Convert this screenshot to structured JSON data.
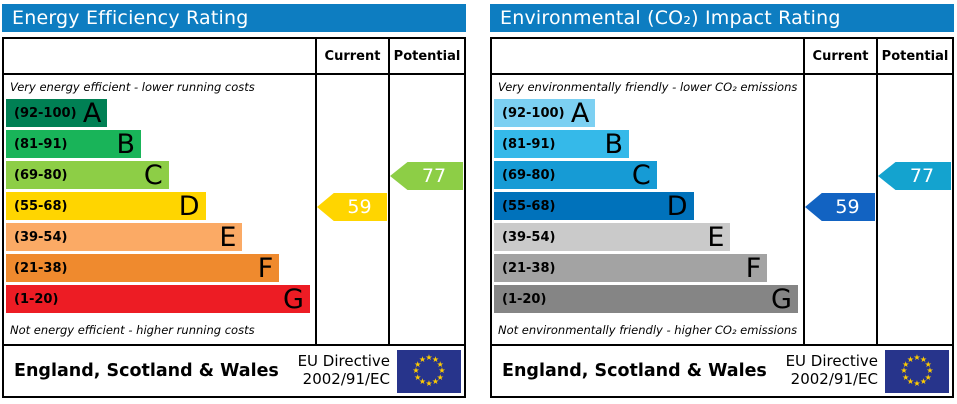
{
  "header_color": "#0d7dc1",
  "panels": [
    {
      "title": "Energy Efficiency Rating",
      "columns": {
        "current": "Current",
        "potential": "Potential"
      },
      "top_note": "Very energy efficient - lower running costs",
      "bottom_note": "Not energy efficient - higher running costs",
      "bands": [
        {
          "range": "(92-100)",
          "letter": "A",
          "color": "#008054",
          "width_pct": 33
        },
        {
          "range": "(81-91)",
          "letter": "B",
          "color": "#19b459",
          "width_pct": 44
        },
        {
          "range": "(69-80)",
          "letter": "C",
          "color": "#8dce46",
          "width_pct": 53
        },
        {
          "range": "(55-68)",
          "letter": "D",
          "color": "#ffd500",
          "width_pct": 65
        },
        {
          "range": "(39-54)",
          "letter": "E",
          "color": "#fbaa65",
          "width_pct": 77
        },
        {
          "range": "(21-38)",
          "letter": "F",
          "color": "#ef8a2e",
          "width_pct": 89
        },
        {
          "range": "(1-20)",
          "letter": "G",
          "color": "#ed1c24",
          "width_pct": 99
        }
      ],
      "current": {
        "value": "59",
        "band": "D",
        "row": 3,
        "color": "#ffd500"
      },
      "potential": {
        "value": "77",
        "band": "C",
        "row": 2,
        "color": "#8dce46"
      },
      "footer": {
        "region": "England, Scotland & Wales",
        "directive_line1": "EU Directive",
        "directive_line2": "2002/91/EC",
        "flag": "EU flag"
      }
    },
    {
      "title": "Environmental (CO₂) Impact Rating",
      "columns": {
        "current": "Current",
        "potential": "Potential"
      },
      "top_note": "Very environmentally friendly - lower CO₂ emissions",
      "bottom_note": "Not environmentally friendly - higher CO₂ emissions",
      "bands": [
        {
          "range": "(92-100)",
          "letter": "A",
          "color": "#7cd0f2",
          "width_pct": 33
        },
        {
          "range": "(81-91)",
          "letter": "B",
          "color": "#35b9e9",
          "width_pct": 44
        },
        {
          "range": "(69-80)",
          "letter": "C",
          "color": "#169bd5",
          "width_pct": 53
        },
        {
          "range": "(55-68)",
          "letter": "D",
          "color": "#0072bb",
          "width_pct": 65
        },
        {
          "range": "(39-54)",
          "letter": "E",
          "color": "#cacaca",
          "width_pct": 77
        },
        {
          "range": "(21-38)",
          "letter": "F",
          "color": "#a3a3a3",
          "width_pct": 89
        },
        {
          "range": "(1-20)",
          "letter": "G",
          "color": "#858585",
          "width_pct": 99
        }
      ],
      "current": {
        "value": "59",
        "band": "D",
        "row": 3,
        "color": "#1263c2"
      },
      "potential": {
        "value": "77",
        "band": "C",
        "row": 2,
        "color": "#14a3cf"
      },
      "footer": {
        "region": "England, Scotland & Wales",
        "directive_line1": "EU Directive",
        "directive_line2": "2002/91/EC",
        "flag": "EU flag"
      }
    }
  ],
  "chart_data": [
    {
      "type": "bar",
      "title": "Energy Efficiency Rating",
      "categories": [
        "A (92-100)",
        "B (81-91)",
        "C (69-80)",
        "D (55-68)",
        "E (39-54)",
        "F (21-38)",
        "G (1-20)"
      ],
      "values": [
        33,
        44,
        53,
        65,
        77,
        89,
        99
      ],
      "values_note": "bar lengths as percent of band column width; bands are rating ranges",
      "annotations": [
        {
          "label": "Current",
          "value": 59,
          "band": "D"
        },
        {
          "label": "Potential",
          "value": 77,
          "band": "C"
        }
      ],
      "legend": [
        "Current",
        "Potential"
      ],
      "footer": "England, Scotland & Wales — EU Directive 2002/91/EC"
    },
    {
      "type": "bar",
      "title": "Environmental (CO₂) Impact Rating",
      "categories": [
        "A (92-100)",
        "B (81-91)",
        "C (69-80)",
        "D (55-68)",
        "E (39-54)",
        "F (21-38)",
        "G (1-20)"
      ],
      "values": [
        33,
        44,
        53,
        65,
        77,
        89,
        99
      ],
      "values_note": "bar lengths as percent of band column width; bands are rating ranges",
      "annotations": [
        {
          "label": "Current",
          "value": 59,
          "band": "D"
        },
        {
          "label": "Potential",
          "value": 77,
          "band": "C"
        }
      ],
      "legend": [
        "Current",
        "Potential"
      ],
      "footer": "England, Scotland & Wales — EU Directive 2002/91/EC"
    }
  ]
}
